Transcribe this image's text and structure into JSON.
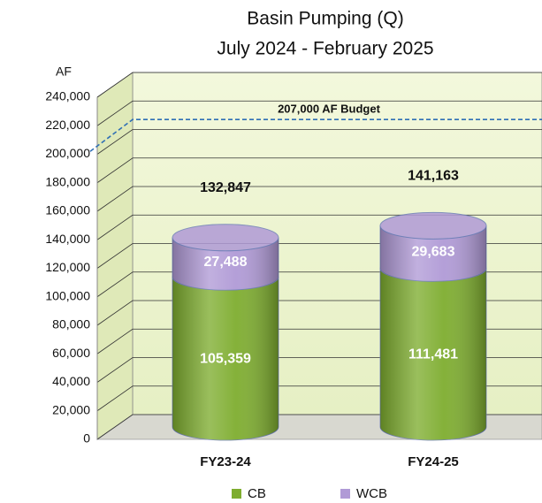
{
  "chart_data": {
    "type": "bar",
    "stacked": true,
    "title": "Basin Pumping (Q)",
    "subtitle": "July 2024 - February 2025",
    "y_label": "AF",
    "categories": [
      "FY23-24",
      "FY24-25"
    ],
    "series": [
      {
        "name": "CB",
        "color": "#7ead2f",
        "values": [
          105359,
          111481
        ],
        "value_labels": [
          "105,359",
          "111,481"
        ]
      },
      {
        "name": "WCB",
        "color": "#b09ad6",
        "values": [
          27488,
          29683
        ],
        "value_labels": [
          "27,488",
          "29,683"
        ]
      }
    ],
    "totals": [
      132847,
      141163
    ],
    "total_labels": [
      "132,847",
      "141,163"
    ],
    "budget": {
      "value": 207000,
      "label": "207,000 AF Budget"
    },
    "ylim": [
      0,
      240000
    ],
    "yticks": [
      0,
      {
        "value": 20000,
        "label": "20,000"
      },
      {
        "value": 40000,
        "label": "40,000"
      },
      {
        "value": 60000,
        "label": "60,000"
      },
      {
        "value": 80000,
        "label": "80,000"
      },
      {
        "value": 100000,
        "label": "100,000"
      },
      {
        "value": 120000,
        "label": "120,000"
      },
      {
        "value": 140000,
        "label": "140,000"
      },
      {
        "value": 160000,
        "label": "160,000"
      },
      {
        "value": 180000,
        "label": "180,000"
      },
      {
        "value": 200000,
        "label": "200,000"
      },
      {
        "value": 220000,
        "label": "220,000"
      },
      {
        "value": 240000,
        "label": "240,000"
      }
    ],
    "grid": true,
    "legend": "bottom"
  }
}
